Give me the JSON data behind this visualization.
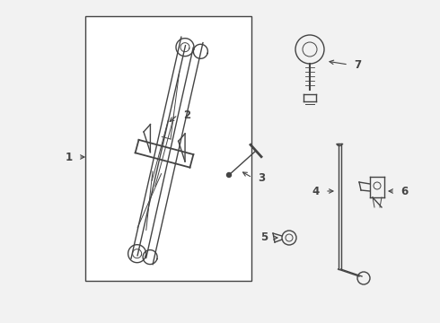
{
  "bg_color": "#f2f2f2",
  "line_color": "#444444",
  "box_color": "#ffffff",
  "figsize": [
    4.9,
    3.6
  ],
  "dpi": 100
}
